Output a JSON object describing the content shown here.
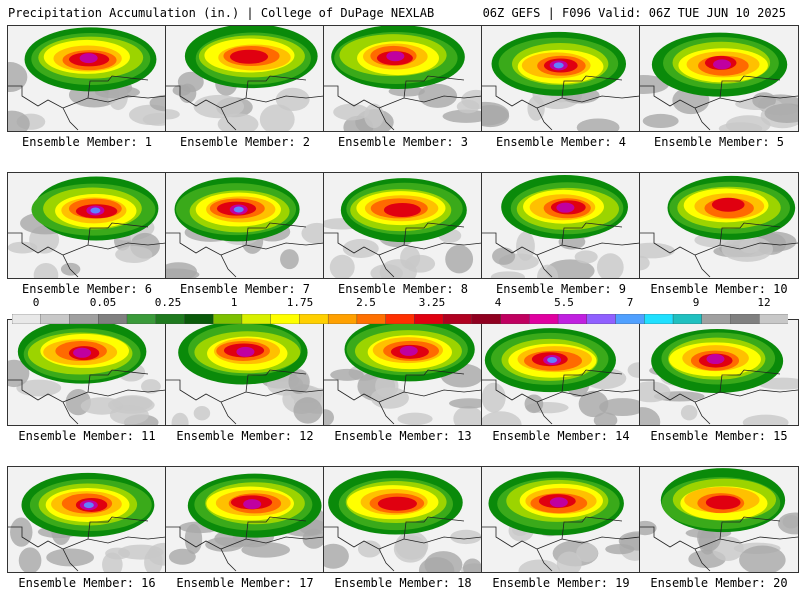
{
  "header": {
    "left": "Precipitation Accumulation (in.) | College of DuPage NEXLAB",
    "right": "06Z GEFS | F096 Valid: 06Z TUE JUN 10 2025"
  },
  "members": [
    {
      "label": "Ensemble Member: 1",
      "max": "4"
    },
    {
      "label": "Ensemble Member: 2",
      "max": "3.25"
    },
    {
      "label": "Ensemble Member: 3",
      "max": "5.5"
    },
    {
      "label": "Ensemble Member: 4",
      "max": "7"
    },
    {
      "label": "Ensemble Member: 5",
      "max": "4"
    },
    {
      "label": "Ensemble Member: 6",
      "max": "7"
    },
    {
      "label": "Ensemble Member: 7",
      "max": "7"
    },
    {
      "label": "Ensemble Member: 8",
      "max": "2.5"
    },
    {
      "label": "Ensemble Member: 9",
      "max": "4"
    },
    {
      "label": "Ensemble Member: 10",
      "max": "3.25"
    },
    {
      "label": "Ensemble Member: 11",
      "max": "4"
    },
    {
      "label": "Ensemble Member: 12",
      "max": "5.5"
    },
    {
      "label": "Ensemble Member: 13",
      "max": "4"
    },
    {
      "label": "Ensemble Member: 14",
      "max": "7"
    },
    {
      "label": "Ensemble Member: 15",
      "max": "5.5"
    },
    {
      "label": "Ensemble Member: 16",
      "max": "7"
    },
    {
      "label": "Ensemble Member: 17",
      "max": "4"
    },
    {
      "label": "Ensemble Member: 18",
      "max": "2.5"
    },
    {
      "label": "Ensemble Member: 19",
      "max": "5.5"
    },
    {
      "label": "Ensemble Member: 20",
      "max": "3.25"
    }
  ],
  "colorbar": {
    "ticks": [
      "0",
      "0.05",
      "0.25",
      "1",
      "1.75",
      "2.5",
      "3.25",
      "4",
      "5.5",
      "7",
      "9",
      "12"
    ],
    "colors": [
      "#e8e8e8",
      "#c8c8c8",
      "#a0a0a0",
      "#808080",
      "#3a9a3a",
      "#1f7a1f",
      "#0a5a0a",
      "#7cc000",
      "#d8f000",
      "#ffff00",
      "#ffd000",
      "#ffa000",
      "#ff7000",
      "#ff3000",
      "#e00010",
      "#b00020",
      "#900020",
      "#c00060",
      "#e000a0",
      "#c020e0",
      "#9060ff",
      "#50a0ff",
      "#20e0ff",
      "#20c0c0",
      "#a0a0a0",
      "#808080",
      "#c8c8c8"
    ]
  }
}
